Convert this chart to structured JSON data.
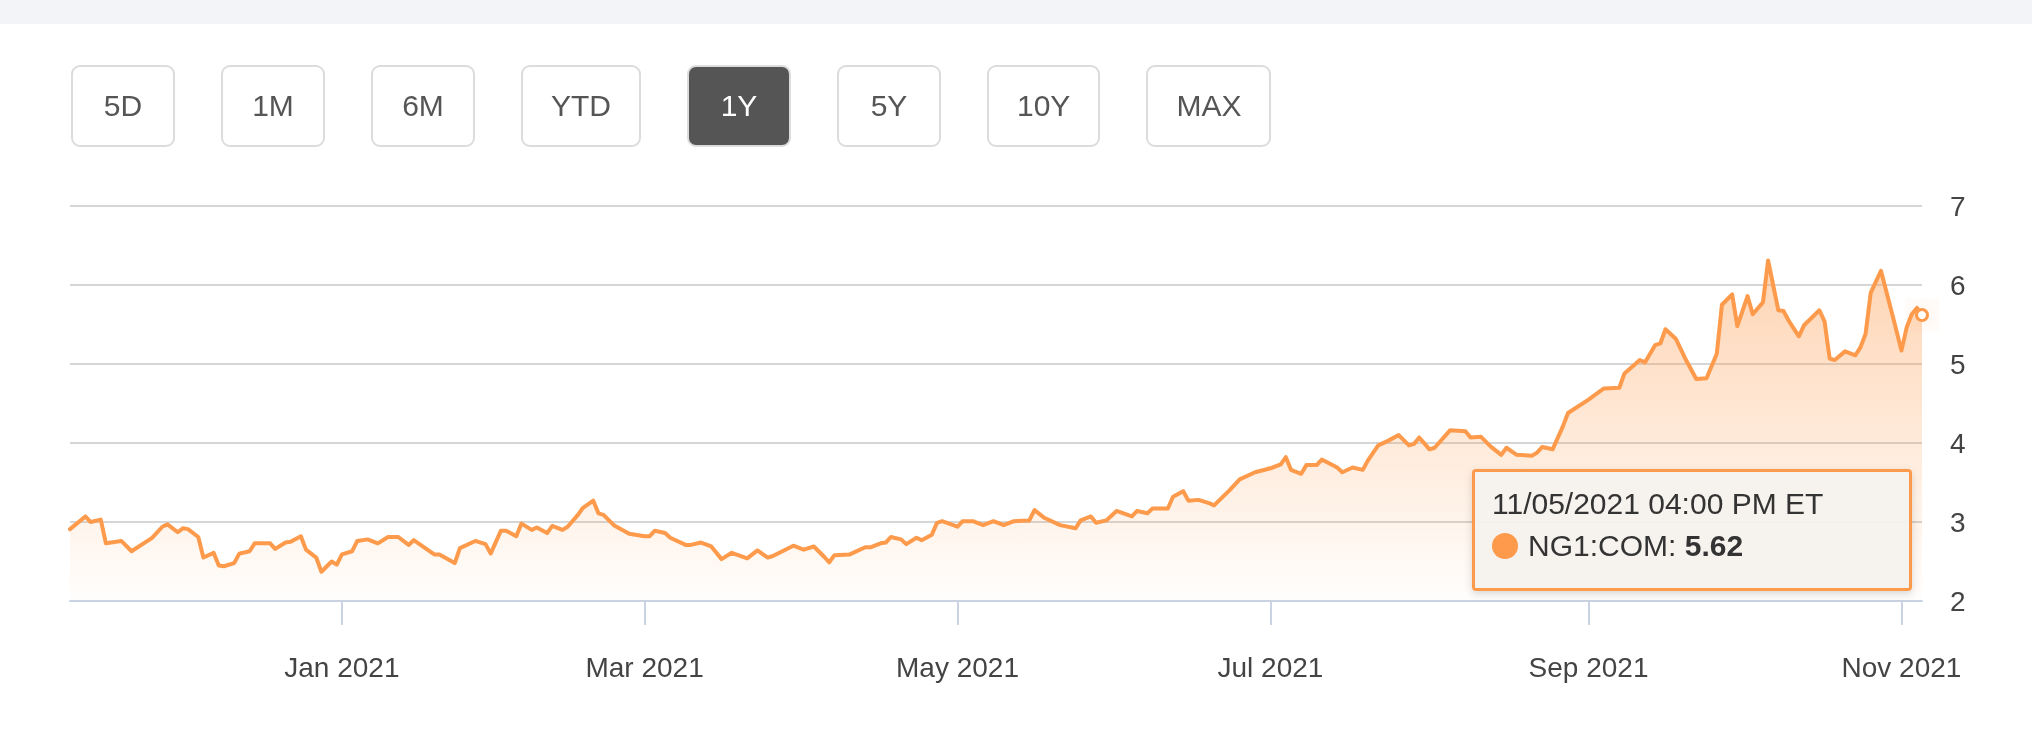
{
  "chart_data": {
    "type": "area",
    "annotations": [
      "5D",
      "1M",
      "6M",
      "YTD",
      "1Y",
      "5Y",
      "10Y",
      "MAX",
      "5.62"
    ],
    "legend_title": "11/05/2021 04:00 PM ET",
    "x": [
      "2020-11-09",
      "2020-11-12",
      "2020-11-13",
      "2020-11-15",
      "2020-11-16",
      "2020-11-19",
      "2020-11-21",
      "2020-11-25",
      "2020-11-27",
      "2020-11-28",
      "2020-11-30",
      "2020-12-01",
      "2020-12-02",
      "2020-12-04",
      "2020-12-05",
      "2020-12-07",
      "2020-12-08",
      "2020-12-09",
      "2020-12-11",
      "2020-12-12",
      "2020-12-14",
      "2020-12-15",
      "2020-12-18",
      "2020-12-19",
      "2020-12-21",
      "2020-12-22",
      "2020-12-24",
      "2020-12-25",
      "2020-12-27",
      "2020-12-28",
      "2020-12-30",
      "2020-12-31",
      "2021-01-01",
      "2021-01-03",
      "2021-01-04",
      "2021-01-06",
      "2021-01-08",
      "2021-01-10",
      "2021-01-12",
      "2021-01-14",
      "2021-01-15",
      "2021-01-19",
      "2021-01-20",
      "2021-01-23",
      "2021-01-24",
      "2021-01-27",
      "2021-01-29",
      "2021-01-30",
      "2021-02-01",
      "2021-02-02",
      "2021-02-04",
      "2021-02-05",
      "2021-02-07",
      "2021-02-08",
      "2021-02-10",
      "2021-02-11",
      "2021-02-13",
      "2021-02-14",
      "2021-02-16",
      "2021-02-17",
      "2021-02-19",
      "2021-02-20",
      "2021-02-21",
      "2021-02-23",
      "2021-02-26",
      "2021-03-01",
      "2021-03-02",
      "2021-03-03",
      "2021-03-05",
      "2021-03-06",
      "2021-03-09",
      "2021-03-10",
      "2021-03-12",
      "2021-03-14",
      "2021-03-15",
      "2021-03-16",
      "2021-03-18",
      "2021-03-21",
      "2021-03-23",
      "2021-03-25",
      "2021-03-26",
      "2021-03-30",
      "2021-04-01",
      "2021-04-03",
      "2021-04-05",
      "2021-04-06",
      "2021-04-07",
      "2021-04-10",
      "2021-04-13",
      "2021-04-14",
      "2021-04-16",
      "2021-04-17",
      "2021-04-18",
      "2021-04-20",
      "2021-04-21",
      "2021-04-23",
      "2021-04-24",
      "2021-04-26",
      "2021-04-27",
      "2021-04-28",
      "2021-05-01",
      "2021-05-02",
      "2021-05-04",
      "2021-05-06",
      "2021-05-08",
      "2021-05-10",
      "2021-05-12",
      "2021-05-15",
      "2021-05-16",
      "2021-05-18",
      "2021-05-21",
      "2021-05-24",
      "2021-05-25",
      "2021-05-27",
      "2021-05-28",
      "2021-05-30",
      "2021-06-01",
      "2021-06-04",
      "2021-06-05",
      "2021-06-07",
      "2021-06-08",
      "2021-06-11",
      "2021-06-12",
      "2021-06-14",
      "2021-06-15",
      "2021-06-17",
      "2021-06-19",
      "2021-06-20",
      "2021-06-23",
      "2021-06-25",
      "2021-06-28",
      "2021-07-01",
      "2021-07-03",
      "2021-07-04",
      "2021-07-05",
      "2021-07-07",
      "2021-07-08",
      "2021-07-10",
      "2021-07-11",
      "2021-07-14",
      "2021-07-15",
      "2021-07-17",
      "2021-07-19",
      "2021-07-20",
      "2021-07-22",
      "2021-07-24",
      "2021-07-26",
      "2021-07-28",
      "2021-07-29",
      "2021-07-30",
      "2021-08-01",
      "2021-08-02",
      "2021-08-05",
      "2021-08-08",
      "2021-08-09",
      "2021-08-11",
      "2021-08-13",
      "2021-08-15",
      "2021-08-16",
      "2021-08-18",
      "2021-08-21",
      "2021-08-22",
      "2021-08-23",
      "2021-08-25",
      "2021-08-27",
      "2021-08-28",
      "2021-09-01",
      "2021-09-04",
      "2021-09-07",
      "2021-09-08",
      "2021-09-11",
      "2021-09-12",
      "2021-09-14",
      "2021-09-15",
      "2021-09-16",
      "2021-09-18",
      "2021-09-20",
      "2021-09-22",
      "2021-09-24",
      "2021-09-26",
      "2021-09-27",
      "2021-09-29",
      "2021-09-30",
      "2021-10-02",
      "2021-10-03",
      "2021-10-05",
      "2021-10-06",
      "2021-10-08",
      "2021-10-09",
      "2021-10-10",
      "2021-10-12",
      "2021-10-13",
      "2021-10-16",
      "2021-10-17",
      "2021-10-18",
      "2021-10-19",
      "2021-10-21",
      "2021-10-23",
      "2021-10-24",
      "2021-10-25",
      "2021-10-26",
      "2021-10-28",
      "2021-10-30",
      "2021-11-01",
      "2021-11-02",
      "2021-11-03",
      "2021-11-04",
      "2021-11-05"
    ],
    "series": [
      {
        "name": "NG1:COM:",
        "color": "#fd9a4b",
        "values": [
          2.91,
          3.07,
          3.0,
          3.03,
          2.73,
          2.76,
          2.63,
          2.8,
          2.94,
          2.97,
          2.87,
          2.92,
          2.91,
          2.81,
          2.55,
          2.61,
          2.45,
          2.44,
          2.48,
          2.6,
          2.63,
          2.73,
          2.73,
          2.66,
          2.74,
          2.75,
          2.82,
          2.65,
          2.55,
          2.37,
          2.5,
          2.46,
          2.59,
          2.63,
          2.76,
          2.78,
          2.73,
          2.81,
          2.81,
          2.71,
          2.77,
          2.59,
          2.59,
          2.48,
          2.67,
          2.76,
          2.72,
          2.6,
          2.89,
          2.89,
          2.82,
          2.98,
          2.9,
          2.93,
          2.86,
          2.95,
          2.9,
          2.94,
          3.09,
          3.18,
          3.27,
          3.11,
          3.09,
          2.96,
          2.85,
          2.82,
          2.82,
          2.89,
          2.86,
          2.8,
          2.71,
          2.71,
          2.74,
          2.69,
          2.61,
          2.53,
          2.61,
          2.54,
          2.64,
          2.55,
          2.57,
          2.7,
          2.65,
          2.69,
          2.56,
          2.49,
          2.58,
          2.59,
          2.68,
          2.68,
          2.73,
          2.74,
          2.81,
          2.78,
          2.72,
          2.8,
          2.77,
          2.84,
          2.99,
          3.01,
          2.94,
          3.01,
          3.01,
          2.96,
          3.01,
          2.96,
          3.01,
          3.02,
          3.15,
          3.05,
          2.96,
          2.92,
          3.02,
          3.07,
          2.99,
          3.02,
          3.14,
          3.07,
          3.14,
          3.11,
          3.17,
          3.17,
          3.32,
          3.39,
          3.27,
          3.28,
          3.24,
          3.21,
          3.4,
          3.54,
          3.63,
          3.68,
          3.73,
          3.82,
          3.66,
          3.61,
          3.72,
          3.72,
          3.79,
          3.69,
          3.63,
          3.69,
          3.66,
          3.78,
          3.97,
          4.03,
          4.1,
          3.97,
          3.99,
          4.07,
          3.92,
          3.94,
          4.16,
          4.15,
          4.07,
          4.08,
          3.95,
          3.85,
          3.94,
          3.85,
          3.84,
          3.88,
          3.95,
          3.92,
          4.21,
          4.38,
          4.55,
          4.69,
          4.7,
          4.88,
          5.05,
          5.02,
          5.24,
          5.26,
          5.44,
          5.32,
          5.05,
          4.81,
          4.82,
          5.13,
          5.75,
          5.88,
          5.48,
          5.86,
          5.63,
          5.78,
          6.31,
          5.68,
          5.67,
          5.55,
          5.35,
          5.49,
          5.68,
          5.54,
          5.07,
          5.05,
          5.16,
          5.11,
          5.21,
          5.38,
          5.9,
          6.18,
          5.68,
          5.17,
          5.46,
          5.63,
          5.71,
          5.62
        ]
      }
    ],
    "xlim": [
      "2020-11-09",
      "2021-11-05"
    ],
    "xticks": [
      {
        "value": "2021-01-01",
        "label": "Jan 2021"
      },
      {
        "value": "2021-03-01",
        "label": "Mar 2021"
      },
      {
        "value": "2021-05-01",
        "label": "May 2021"
      },
      {
        "value": "2021-07-01",
        "label": "Jul 2021"
      },
      {
        "value": "2021-09-01",
        "label": "Sep 2021"
      },
      {
        "value": "2021-11-01",
        "label": "Nov 2021"
      }
    ],
    "ylim": [
      2,
      7
    ],
    "yticks": [
      2,
      3,
      4,
      5,
      6,
      7
    ],
    "grid": "y",
    "legend": "bottom right"
  }
}
